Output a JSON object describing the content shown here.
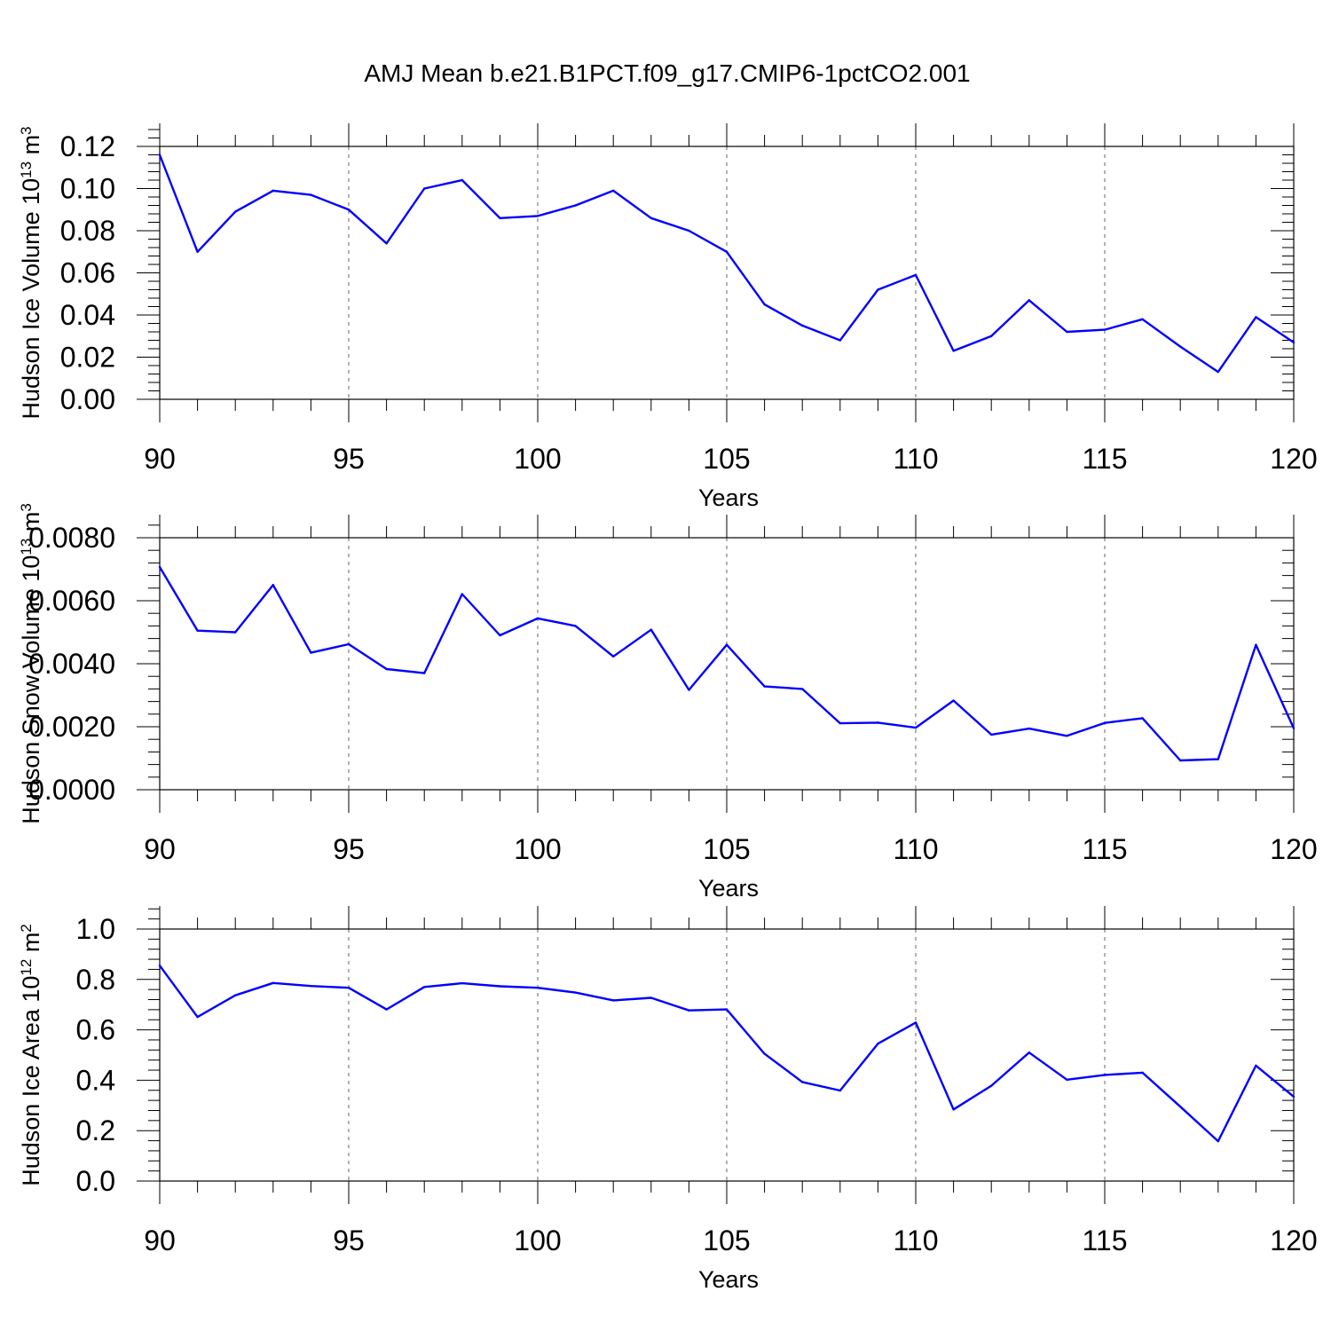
{
  "figure": {
    "title": "AMJ Mean b.e21.B1PCT.f09_g17.CMIP6-1pctCO2.001"
  },
  "chart_data": [
    {
      "type": "line",
      "title": "AMJ Mean b.e21.B1PCT.f09_g17.CMIP6-1pctCO2.001",
      "xlabel": "Years",
      "ylabel": "Hudson Ice Volume 10",
      "ylabel_exp": "13",
      "ylabel_unit": " m",
      "ylabel_unit_exp": "3",
      "xlim": [
        90,
        120
      ],
      "ylim": [
        0,
        0.12
      ],
      "x_ticks": [
        90,
        95,
        100,
        105,
        110,
        115,
        120
      ],
      "x_tick_labels": [
        "90",
        "95",
        "100",
        "105",
        "110",
        "115",
        "120"
      ],
      "y_ticks": [
        0,
        0.02,
        0.04,
        0.06,
        0.08,
        0.1,
        0.12
      ],
      "y_tick_labels": [
        "0.00",
        "0.02",
        "0.04",
        "0.06",
        "0.08",
        "0.10",
        "0.12"
      ],
      "grid": "vertical dashed at major x ticks",
      "color": "#0000ff",
      "x": [
        90,
        91,
        92,
        93,
        94,
        95,
        96,
        97,
        98,
        99,
        100,
        101,
        102,
        103,
        104,
        105,
        106,
        107,
        108,
        109,
        110,
        111,
        112,
        113,
        114,
        115,
        116,
        117,
        118,
        119,
        120
      ],
      "values": [
        0.116,
        0.07,
        0.089,
        0.099,
        0.097,
        0.09,
        0.074,
        0.1,
        0.104,
        0.086,
        0.087,
        0.092,
        0.099,
        0.086,
        0.08,
        0.07,
        0.045,
        0.035,
        0.028,
        0.052,
        0.059,
        0.023,
        0.03,
        0.047,
        0.032,
        0.033,
        0.038,
        0.025,
        0.013,
        0.039,
        0.027
      ]
    },
    {
      "type": "line",
      "xlabel": "Years",
      "ylabel": "Hudson Snow Volume 10",
      "ylabel_exp": "13",
      "ylabel_unit": " m",
      "ylabel_unit_exp": "3",
      "xlim": [
        90,
        120
      ],
      "ylim": [
        0,
        0.008
      ],
      "x_ticks": [
        90,
        95,
        100,
        105,
        110,
        115,
        120
      ],
      "x_tick_labels": [
        "90",
        "95",
        "100",
        "105",
        "110",
        "115",
        "120"
      ],
      "y_ticks": [
        0,
        0.002,
        0.004,
        0.006,
        0.008
      ],
      "y_tick_labels": [
        "0.0000",
        "0.0020",
        "0.0040",
        "0.0060",
        "0.0080"
      ],
      "grid": "vertical dashed at major x ticks",
      "color": "#0000ff",
      "x": [
        90,
        91,
        92,
        93,
        94,
        95,
        96,
        97,
        98,
        99,
        100,
        101,
        102,
        103,
        104,
        105,
        106,
        107,
        108,
        109,
        110,
        111,
        112,
        113,
        114,
        115,
        116,
        117,
        118,
        119,
        120
      ],
      "values": [
        0.00707,
        0.00505,
        0.005,
        0.0065,
        0.00435,
        0.00462,
        0.00383,
        0.0037,
        0.00621,
        0.0049,
        0.00544,
        0.0052,
        0.00423,
        0.00508,
        0.00317,
        0.0046,
        0.00328,
        0.0032,
        0.00211,
        0.00213,
        0.00197,
        0.00283,
        0.00175,
        0.00194,
        0.00171,
        0.00212,
        0.00227,
        0.00093,
        0.00097,
        0.0046,
        0.00195
      ]
    },
    {
      "type": "line",
      "xlabel": "Years",
      "ylabel": "Hudson Ice Area 10",
      "ylabel_exp": "12",
      "ylabel_unit": " m",
      "ylabel_unit_exp": "2",
      "xlim": [
        90,
        120
      ],
      "ylim": [
        0,
        1.0
      ],
      "x_ticks": [
        90,
        95,
        100,
        105,
        110,
        115,
        120
      ],
      "x_tick_labels": [
        "90",
        "95",
        "100",
        "105",
        "110",
        "115",
        "120"
      ],
      "y_ticks": [
        0,
        0.2,
        0.4,
        0.6,
        0.8,
        1.0
      ],
      "y_tick_labels": [
        "0.0",
        "0.2",
        "0.4",
        "0.6",
        "0.8",
        "1.0"
      ],
      "grid": "vertical dashed at major x ticks",
      "color": "#0000ff",
      "x": [
        90,
        91,
        92,
        93,
        94,
        95,
        96,
        97,
        98,
        99,
        100,
        101,
        102,
        103,
        104,
        105,
        106,
        107,
        108,
        109,
        110,
        111,
        112,
        113,
        114,
        115,
        116,
        117,
        118,
        119,
        120
      ],
      "values": [
        0.855,
        0.651,
        0.737,
        0.786,
        0.774,
        0.767,
        0.681,
        0.77,
        0.785,
        0.773,
        0.767,
        0.748,
        0.717,
        0.727,
        0.677,
        0.681,
        0.505,
        0.393,
        0.359,
        0.545,
        0.629,
        0.284,
        0.378,
        0.51,
        0.402,
        0.421,
        0.43,
        0.295,
        0.158,
        0.458,
        0.335
      ]
    }
  ]
}
